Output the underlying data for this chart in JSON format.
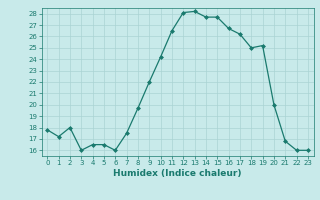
{
  "x": [
    0,
    1,
    2,
    3,
    4,
    5,
    6,
    7,
    8,
    9,
    10,
    11,
    12,
    13,
    14,
    15,
    16,
    17,
    18,
    19,
    20,
    21,
    22,
    23
  ],
  "y": [
    17.8,
    17.2,
    18.0,
    16.0,
    16.5,
    16.5,
    16.0,
    17.5,
    19.7,
    22.0,
    24.2,
    26.5,
    28.1,
    28.2,
    27.7,
    27.7,
    26.7,
    26.2,
    25.0,
    25.2,
    20.0,
    16.8,
    16.0,
    16.0
  ],
  "xlabel": "Humidex (Indice chaleur)",
  "xlim": [
    -0.5,
    23.5
  ],
  "ylim": [
    15.5,
    28.5
  ],
  "yticks": [
    16,
    17,
    18,
    19,
    20,
    21,
    22,
    23,
    24,
    25,
    26,
    27,
    28
  ],
  "xticks": [
    0,
    1,
    2,
    3,
    4,
    5,
    6,
    7,
    8,
    9,
    10,
    11,
    12,
    13,
    14,
    15,
    16,
    17,
    18,
    19,
    20,
    21,
    22,
    23
  ],
  "line_color": "#1a7a6e",
  "marker_color": "#1a7a6e",
  "bg_color": "#c8eaea",
  "grid_color": "#aad4d4",
  "tick_color": "#1a7a6e",
  "label_color": "#1a7a6e",
  "tick_fontsize": 5.0,
  "xlabel_fontsize": 6.5
}
